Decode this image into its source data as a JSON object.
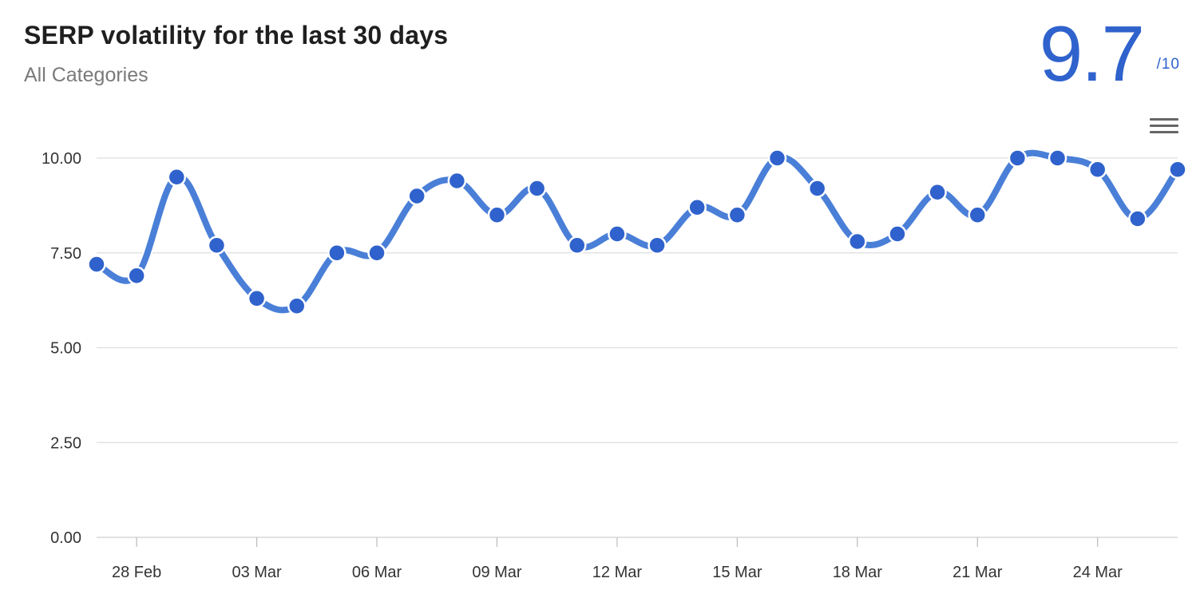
{
  "header": {
    "title": "SERP volatility for the last 30 days",
    "subtitle": "All Categories",
    "score": "9.7",
    "score_max": "/10"
  },
  "menu": {
    "icon": "hamburger-menu-icon"
  },
  "colors": {
    "line": "#4a7fd8",
    "point": "#2f62cc",
    "score": "#2f62cc",
    "grid": "#dddddd"
  },
  "chart_data": {
    "type": "line",
    "title": "SERP volatility for the last 30 days",
    "subtitle": "All Categories",
    "x": [
      "27 Feb",
      "28 Feb",
      "01 Mar",
      "02 Mar",
      "03 Mar",
      "04 Mar",
      "05 Mar",
      "06 Mar",
      "07 Mar",
      "08 Mar",
      "09 Mar",
      "10 Mar",
      "11 Mar",
      "12 Mar",
      "13 Mar",
      "14 Mar",
      "15 Mar",
      "16 Mar",
      "17 Mar",
      "18 Mar",
      "19 Mar",
      "20 Mar",
      "21 Mar",
      "22 Mar",
      "23 Mar",
      "24 Mar",
      "25 Mar",
      "26 Mar"
    ],
    "series": [
      {
        "values": [
          7.2,
          6.9,
          9.5,
          7.7,
          6.3,
          6.1,
          7.5,
          7.5,
          9.0,
          9.4,
          8.5,
          9.2,
          7.7,
          8.0,
          7.7,
          8.7,
          8.5,
          10.0,
          9.2,
          7.8,
          8.0,
          9.1,
          8.5,
          10.0,
          10.0,
          9.7,
          8.4,
          9.7
        ]
      }
    ],
    "xticks": [
      "28 Feb",
      "03 Mar",
      "06 Mar",
      "09 Mar",
      "12 Mar",
      "15 Mar",
      "18 Mar",
      "21 Mar",
      "24 Mar"
    ],
    "yticks": [
      "0.00",
      "2.50",
      "5.00",
      "7.50",
      "10.00"
    ],
    "ylim": [
      0,
      10
    ],
    "grid": true,
    "legend": "none"
  }
}
